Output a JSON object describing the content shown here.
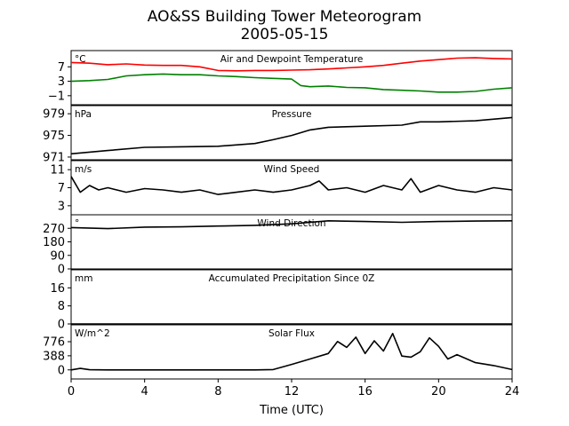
{
  "title_line1": "AO&SS Building Tower Meteorogram",
  "title_line2": "2005-05-15",
  "chart_data": {
    "type": "line",
    "xlabel": "Time (UTC)",
    "xlim": [
      0,
      24
    ],
    "xticks": [
      "0",
      "4",
      "8",
      "12",
      "16",
      "20",
      "24"
    ],
    "panels": [
      {
        "id": "temp",
        "title": "Air and Dewpoint Temperature",
        "unit": "°C",
        "ylim": [
          -3.5,
          11.5
        ],
        "yticks": [
          {
            "v": 7,
            "label": "7"
          },
          {
            "v": 3,
            "label": "3"
          },
          {
            "v": -1,
            "label": "−1"
          }
        ],
        "series": [
          {
            "color": "#ff0000",
            "x": [
              0,
              1,
              2,
              3,
              4,
              5,
              6,
              7,
              8,
              9,
              10,
              11,
              12,
              13,
              14,
              15,
              16,
              17,
              18,
              19,
              20,
              21,
              22,
              23,
              24
            ],
            "y": [
              8.2,
              8.0,
              7.6,
              7.8,
              7.5,
              7.4,
              7.4,
              7.0,
              6.0,
              5.9,
              6.0,
              6.0,
              6.1,
              6.2,
              6.4,
              6.7,
              7.0,
              7.4,
              8.0,
              8.6,
              9.0,
              9.4,
              9.5,
              9.3,
              9.2
            ]
          },
          {
            "color": "#008000",
            "x": [
              0,
              1,
              2,
              3,
              4,
              5,
              6,
              7,
              8,
              9,
              10,
              11,
              12,
              12.5,
              13,
              14,
              15,
              16,
              17,
              18,
              19,
              20,
              21,
              22,
              23,
              24
            ],
            "y": [
              3.0,
              3.2,
              3.5,
              4.5,
              4.8,
              5.0,
              4.8,
              4.8,
              4.5,
              4.3,
              4.0,
              3.8,
              3.6,
              1.8,
              1.5,
              1.7,
              1.3,
              1.2,
              0.7,
              0.5,
              0.3,
              0.0,
              0.0,
              0.2,
              0.8,
              1.2
            ]
          }
        ]
      },
      {
        "id": "pres",
        "title": "Pressure",
        "unit": "hPa",
        "ylim": [
          970.5,
          980.5
        ],
        "yticks": [
          {
            "v": 979,
            "label": "979"
          },
          {
            "v": 975,
            "label": "975"
          },
          {
            "v": 971,
            "label": "971"
          }
        ],
        "series": [
          {
            "color": "#000000",
            "x": [
              0,
              2,
              4,
              6,
              8,
              10,
              11,
              12,
              13,
              14,
              16,
              18,
              19,
              20,
              22,
              24
            ],
            "y": [
              971.6,
              972.2,
              972.8,
              972.9,
              973.0,
              973.5,
              974.2,
              975.0,
              976.0,
              976.5,
              976.7,
              976.9,
              977.5,
              977.5,
              977.7,
              978.3
            ]
          }
        ]
      },
      {
        "id": "wspd",
        "title": "Wind Speed",
        "unit": "m/s",
        "ylim": [
          1,
          13
        ],
        "yticks": [
          {
            "v": 11,
            "label": "11"
          },
          {
            "v": 7,
            "label": "7"
          },
          {
            "v": 3,
            "label": "3"
          }
        ],
        "series": [
          {
            "color": "#000000",
            "x": [
              0,
              0.5,
              1,
              1.5,
              2,
              3,
              4,
              5,
              6,
              7,
              8,
              9,
              10,
              11,
              12,
              13,
              13.5,
              14,
              15,
              16,
              17,
              18,
              18.5,
              19,
              20,
              21,
              22,
              23,
              24
            ],
            "y": [
              9.5,
              6.0,
              7.5,
              6.5,
              7.0,
              6.0,
              6.8,
              6.5,
              6.0,
              6.5,
              5.5,
              6.0,
              6.5,
              6.0,
              6.5,
              7.5,
              8.5,
              6.5,
              7.0,
              6.0,
              7.5,
              6.5,
              9.0,
              6.0,
              7.5,
              6.5,
              6.0,
              7.0,
              6.5
            ]
          }
        ]
      },
      {
        "id": "wdir",
        "title": "Wind Direction",
        "unit": "°",
        "ylim": [
          0,
          360
        ],
        "yticks": [
          {
            "v": 270,
            "label": "270"
          },
          {
            "v": 180,
            "label": "180"
          },
          {
            "v": 90,
            "label": "90"
          },
          {
            "v": 0,
            "label": "0"
          }
        ],
        "series": [
          {
            "color": "#000000",
            "x": [
              0,
              2,
              4,
              6,
              8,
              10,
              12,
              14,
              16,
              18,
              20,
              22,
              24
            ],
            "y": [
              275,
              268,
              278,
              280,
              285,
              290,
              300,
              320,
              315,
              310,
              315,
              318,
              320
            ]
          }
        ]
      },
      {
        "id": "prcp",
        "title": "Accumulated Precipitation Since 0Z",
        "unit": "mm",
        "ylim": [
          0,
          24
        ],
        "yticks": [
          {
            "v": 16,
            "label": "16"
          },
          {
            "v": 8,
            "label": "8"
          },
          {
            "v": 0,
            "label": "0"
          }
        ],
        "series": [
          {
            "color": "#000000",
            "x": [
              0,
              24
            ],
            "y": [
              0,
              0
            ]
          }
        ]
      },
      {
        "id": "srad",
        "title": "Solar Flux",
        "unit": "W/m^2",
        "ylim": [
          -250,
          1240
        ],
        "yticks": [
          {
            "v": 776,
            "label": "776"
          },
          {
            "v": 388,
            "label": "388"
          },
          {
            "v": 0,
            "label": "0"
          }
        ],
        "series": [
          {
            "color": "#000000",
            "x": [
              0,
              0.5,
              1,
              2,
              4,
              6,
              8,
              10,
              11,
              11.5,
              12,
              13,
              14,
              14.5,
              15,
              15.5,
              16,
              16.5,
              17,
              17.5,
              18,
              18.5,
              19,
              19.5,
              20,
              20.5,
              21,
              22,
              23,
              24
            ],
            "y": [
              0,
              40,
              5,
              0,
              0,
              0,
              0,
              0,
              10,
              80,
              150,
              300,
              450,
              780,
              620,
              900,
              450,
              800,
              520,
              1000,
              380,
              350,
              500,
              880,
              650,
              300,
              420,
              200,
              120,
              10
            ]
          }
        ]
      }
    ]
  }
}
